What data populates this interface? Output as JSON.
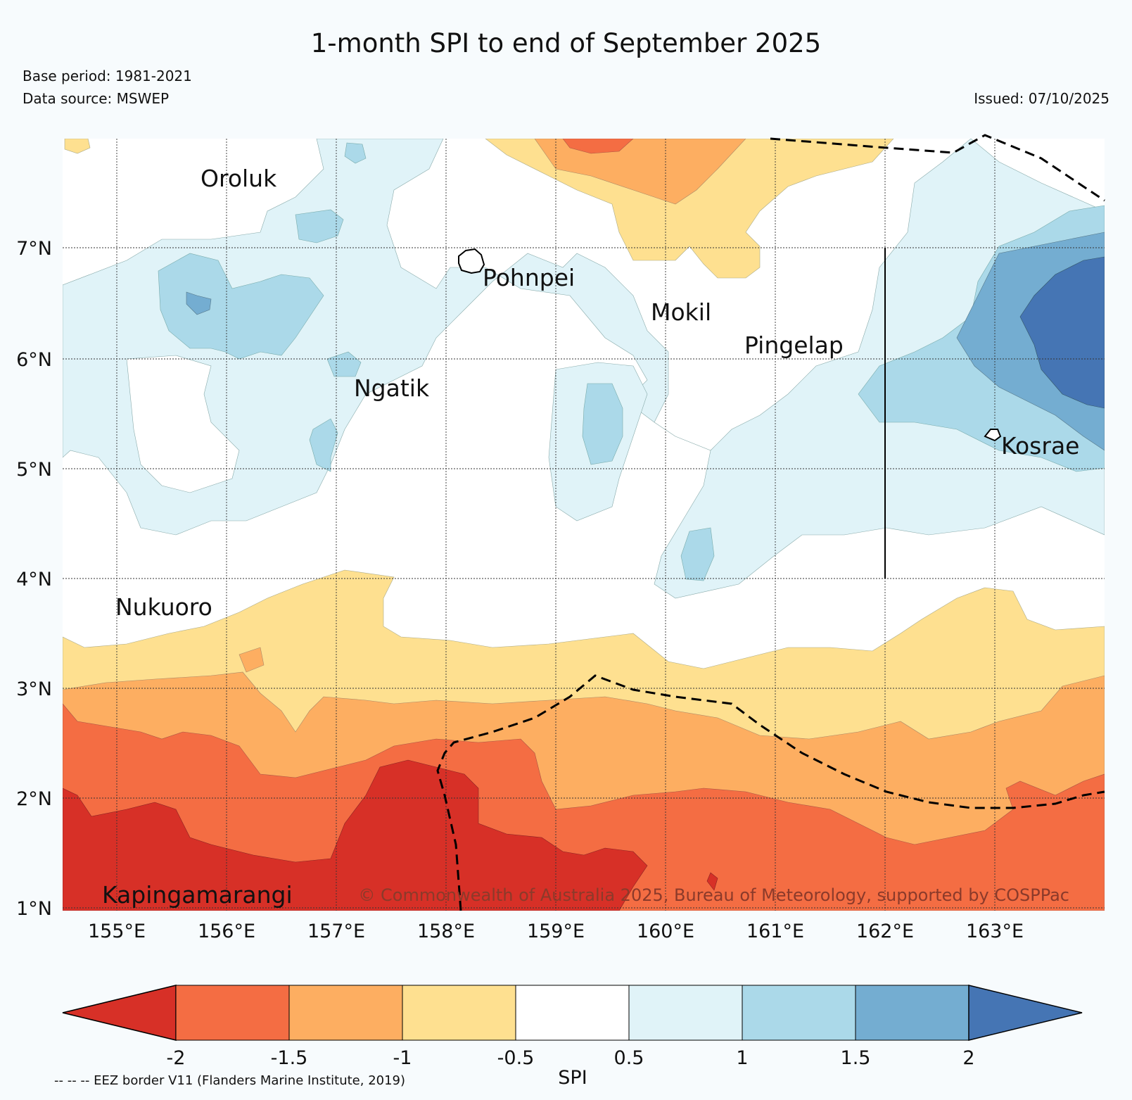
{
  "title": "1-month SPI to end of September 2025",
  "meta": {
    "base_period": "Base period: 1981-2021",
    "data_source": "Data source: MSWEP",
    "issued": "Issued: 07/10/2025"
  },
  "map": {
    "lat_labels": [
      "7°N",
      "6°N",
      "5°N",
      "4°N",
      "3°N",
      "2°N",
      "1°N"
    ],
    "lon_labels": [
      "155°E",
      "156°E",
      "157°E",
      "158°E",
      "159°E",
      "160°E",
      "161°E",
      "162°E",
      "163°E"
    ],
    "places": {
      "oroluk": "Oroluk",
      "pohnpei": "Pohnpei",
      "mokil": "Mokil",
      "pingelap": "Pingelap",
      "ngatik": "Ngatik",
      "kosrae": "Kosrae",
      "nukuoro": "Nukuoro",
      "kapingamarangi": "Kapingamarangi"
    },
    "copyright": "© Commonwealth of Australia 2025, Bureau of Meteorology, supported by COSPPac"
  },
  "colorbar": {
    "label": "SPI",
    "ticks": [
      "-2",
      "-1.5",
      "-1",
      "-0.5",
      "0.5",
      "1",
      "1.5",
      "2"
    ],
    "colors": {
      "below_-2": "#d73027",
      "-2_-1.5": "#f46d43",
      "-1.5_-1": "#fdae61",
      "-1_-0.5": "#fee090",
      "-0.5_0.5": "#ffffff",
      "0.5_1": "#e0f3f8",
      "1_1.5": "#abd9e9",
      "1.5_2": "#74add1",
      "above_2": "#4575b4"
    }
  },
  "legend_note": "-- -- -- EEZ border V11 (Flanders Marine Institute, 2019)"
}
